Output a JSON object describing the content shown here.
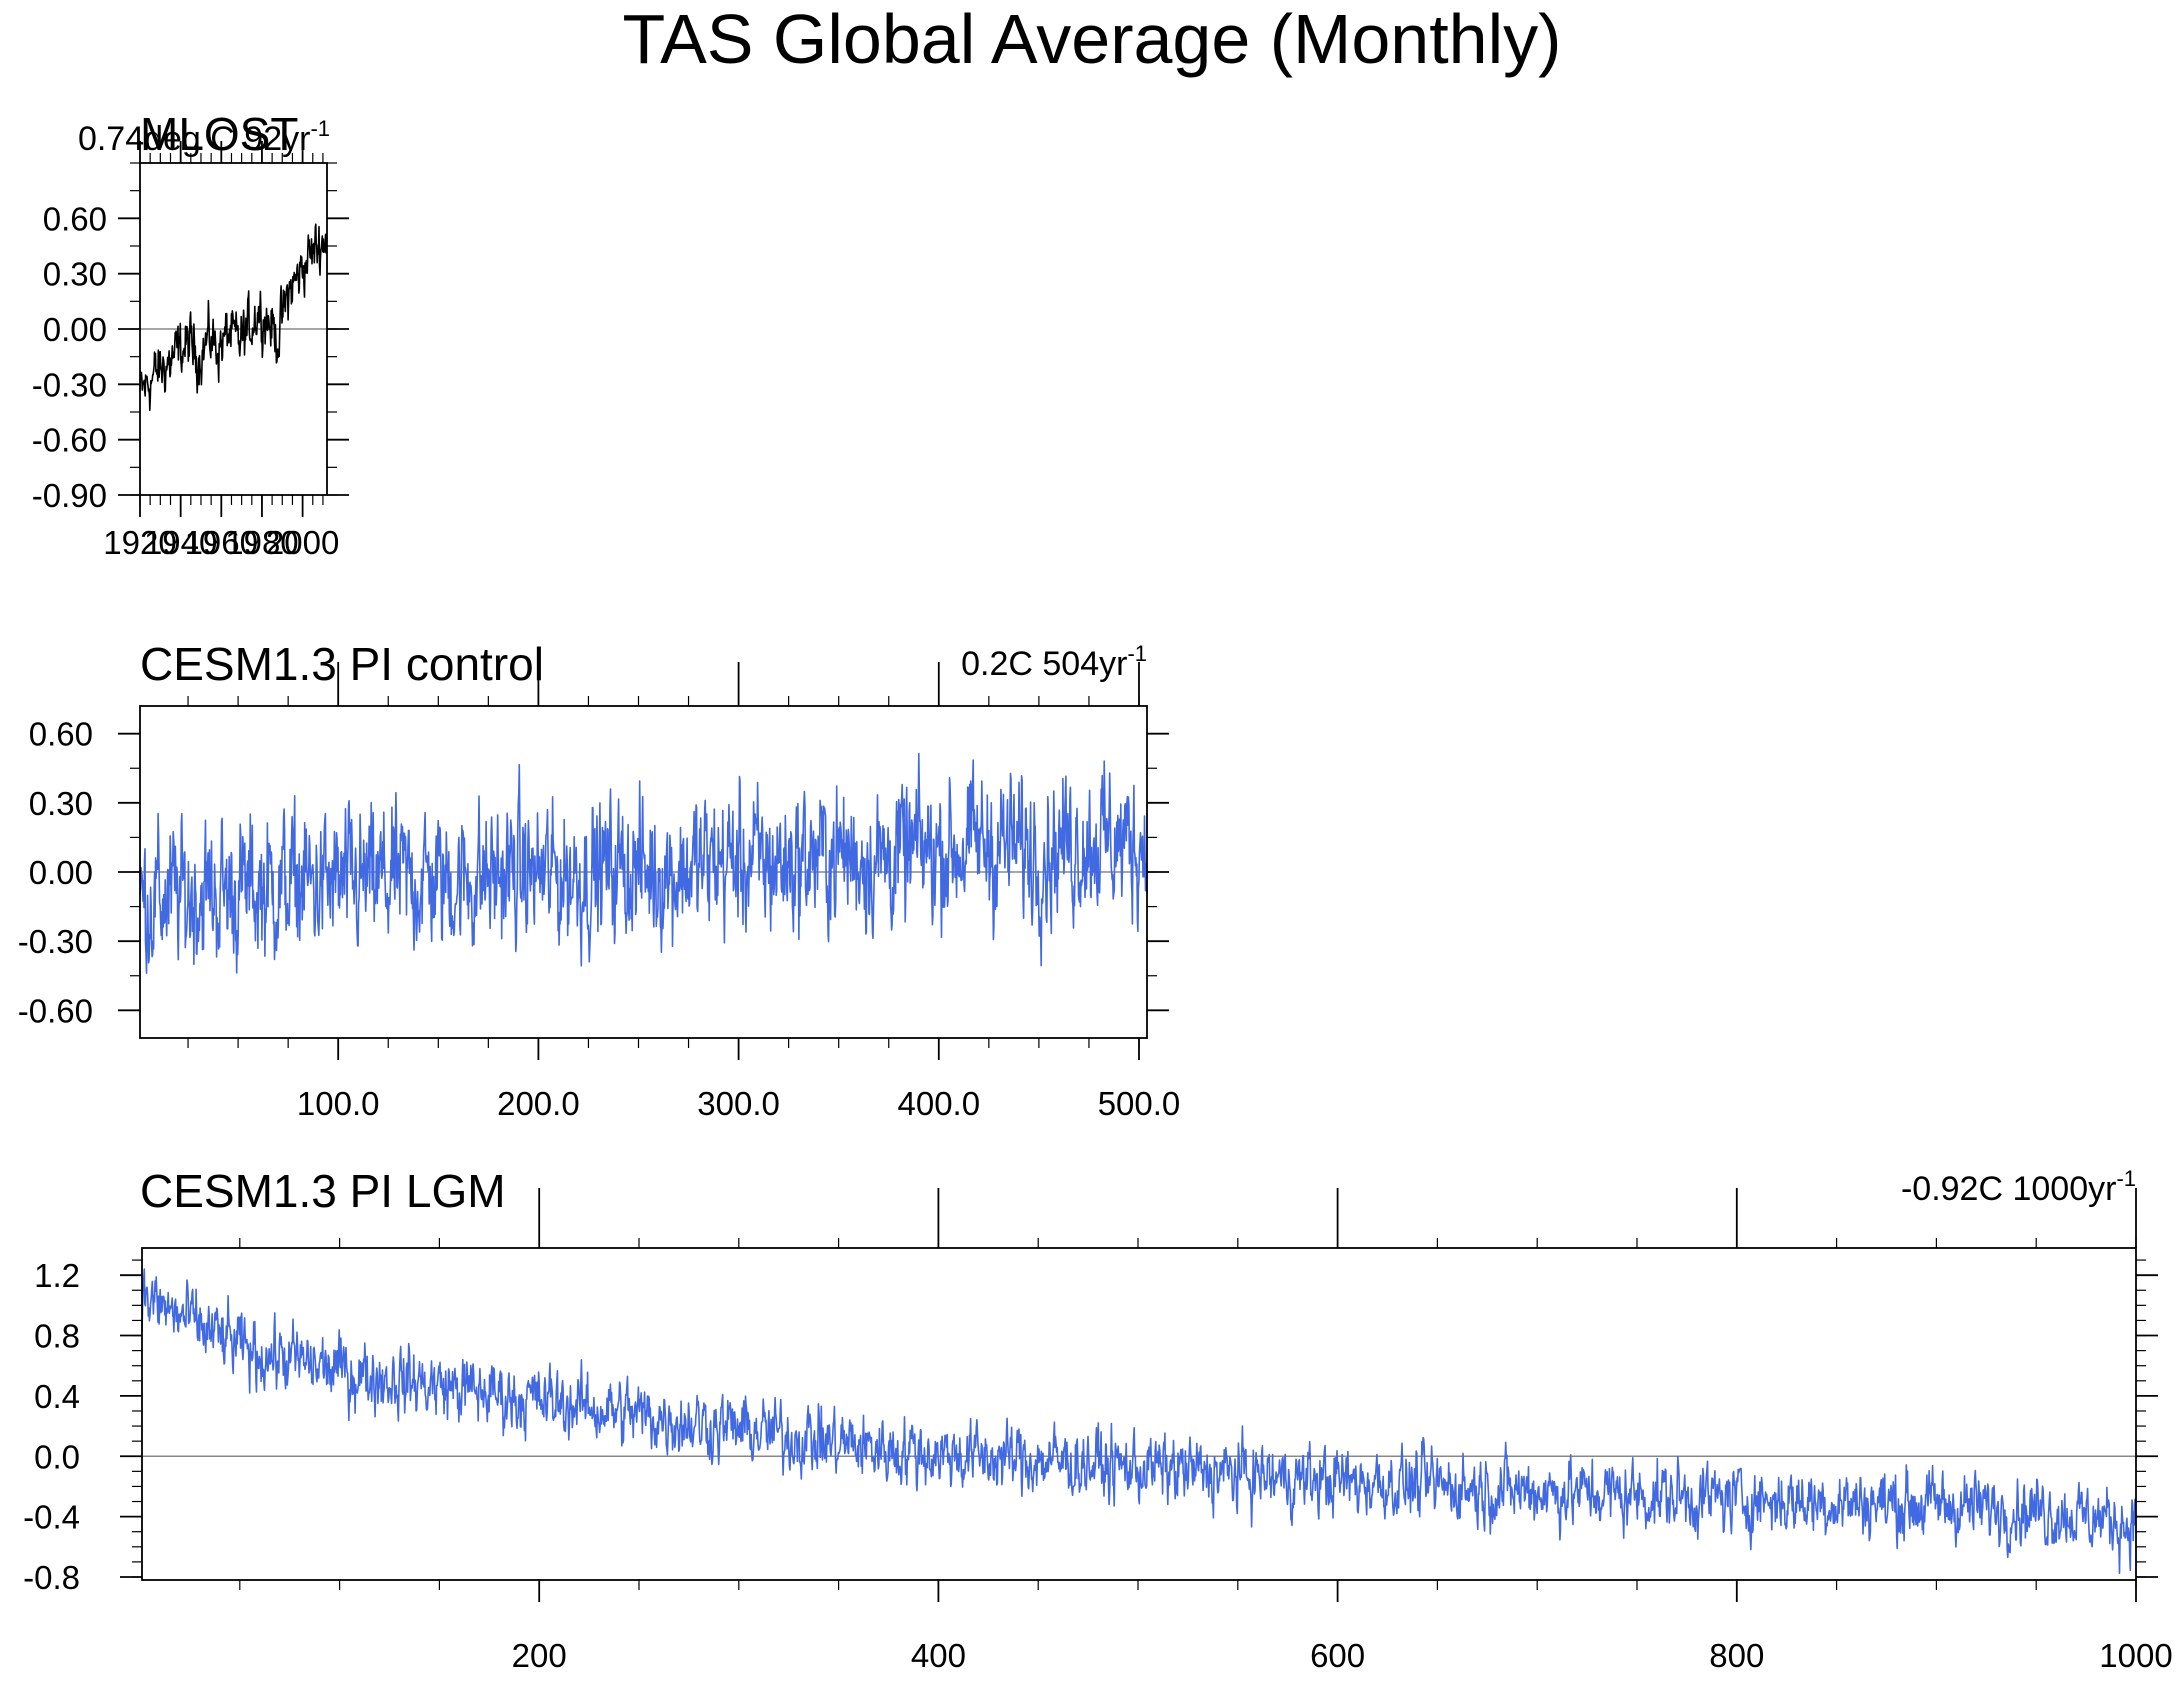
{
  "title": "TAS Global Average (Monthly)",
  "colors": {
    "obs": "#000000",
    "model": "#4169e1",
    "axis": "#000000",
    "zero": "#888888"
  },
  "chart_data": [
    {
      "type": "line",
      "title": "MLOST",
      "trend_label": "0.74deg C 92yr",
      "trend_sup": "-1",
      "series": [
        {
          "name": "MLOST",
          "color": "#000000",
          "x_start": 1920,
          "x_end": 2012,
          "values": [
            -0.35,
            -0.28,
            -0.22,
            -0.18,
            -0.12,
            -0.08,
            -0.15,
            -0.05,
            -0.1,
            -0.02,
            -0.08,
            0.0,
            0.1,
            0.05,
            -0.05,
            0.18,
            0.28,
            0.38,
            0.45,
            0.5
          ]
        }
      ],
      "xlim": [
        1920,
        2012
      ],
      "xticks": [
        1920,
        1940,
        1960,
        1980,
        2000
      ],
      "xtick_labels": [
        "1920",
        "1940",
        "1960",
        "1980",
        "2000"
      ],
      "ylim": [
        -0.9,
        0.9
      ],
      "yticks": [
        -0.9,
        -0.6,
        -0.3,
        0.0,
        0.3,
        0.6
      ],
      "ytick_labels": [
        "-0.90",
        "-0.60",
        "-0.30",
        "0.00",
        "0.30",
        "0.60"
      ],
      "zero_line": true
    },
    {
      "type": "line",
      "title": "CESM1.3 PI control",
      "trend_label": "0.2C 504yr",
      "trend_sup": "-1",
      "series": [
        {
          "name": "PI control",
          "color": "#4169e1",
          "x_start": 1,
          "x_end": 504,
          "values": [
            -0.12,
            -0.1,
            -0.08,
            -0.05,
            -0.06,
            -0.03,
            -0.04,
            0.0,
            -0.02,
            0.02,
            0.0,
            0.05,
            0.04,
            0.08,
            0.06,
            0.1,
            0.12,
            0.1,
            0.14,
            0.12
          ]
        }
      ],
      "xlim": [
        1,
        504
      ],
      "xticks": [
        100,
        200,
        300,
        400,
        500
      ],
      "xtick_labels": [
        "100.0",
        "200.0",
        "300.0",
        "400.0",
        "500.0"
      ],
      "ylim": [
        -0.72,
        0.72
      ],
      "yticks": [
        -0.6,
        -0.3,
        0.0,
        0.3,
        0.6
      ],
      "ytick_labels": [
        "-0.60",
        "-0.30",
        "0.00",
        "0.30",
        "0.60"
      ],
      "zero_line": true
    },
    {
      "type": "line",
      "title": "CESM1.3 PI LGM",
      "trend_label": "-0.92C 1000yr",
      "trend_sup": "-1",
      "series": [
        {
          "name": "PI LGM",
          "color": "#4169e1",
          "x_start": 1,
          "x_end": 1000,
          "values": [
            1.05,
            0.7,
            0.55,
            0.45,
            0.35,
            0.25,
            0.15,
            0.05,
            0.0,
            -0.05,
            -0.1,
            -0.15,
            -0.18,
            -0.22,
            -0.25,
            -0.28,
            -0.3,
            -0.32,
            -0.35,
            -0.45
          ]
        }
      ],
      "xlim": [
        1,
        1000
      ],
      "xticks": [
        200,
        400,
        600,
        800,
        1000
      ],
      "xtick_labels": [
        "200",
        "400",
        "600",
        "800",
        "1000"
      ],
      "ylim": [
        -0.82,
        1.38
      ],
      "yticks": [
        -0.8,
        -0.4,
        0.0,
        0.4,
        0.8,
        1.2
      ],
      "ytick_labels": [
        "-0.8",
        "-0.4",
        "0.0",
        "0.4",
        "0.8",
        "1.2"
      ],
      "zero_line": true
    }
  ]
}
